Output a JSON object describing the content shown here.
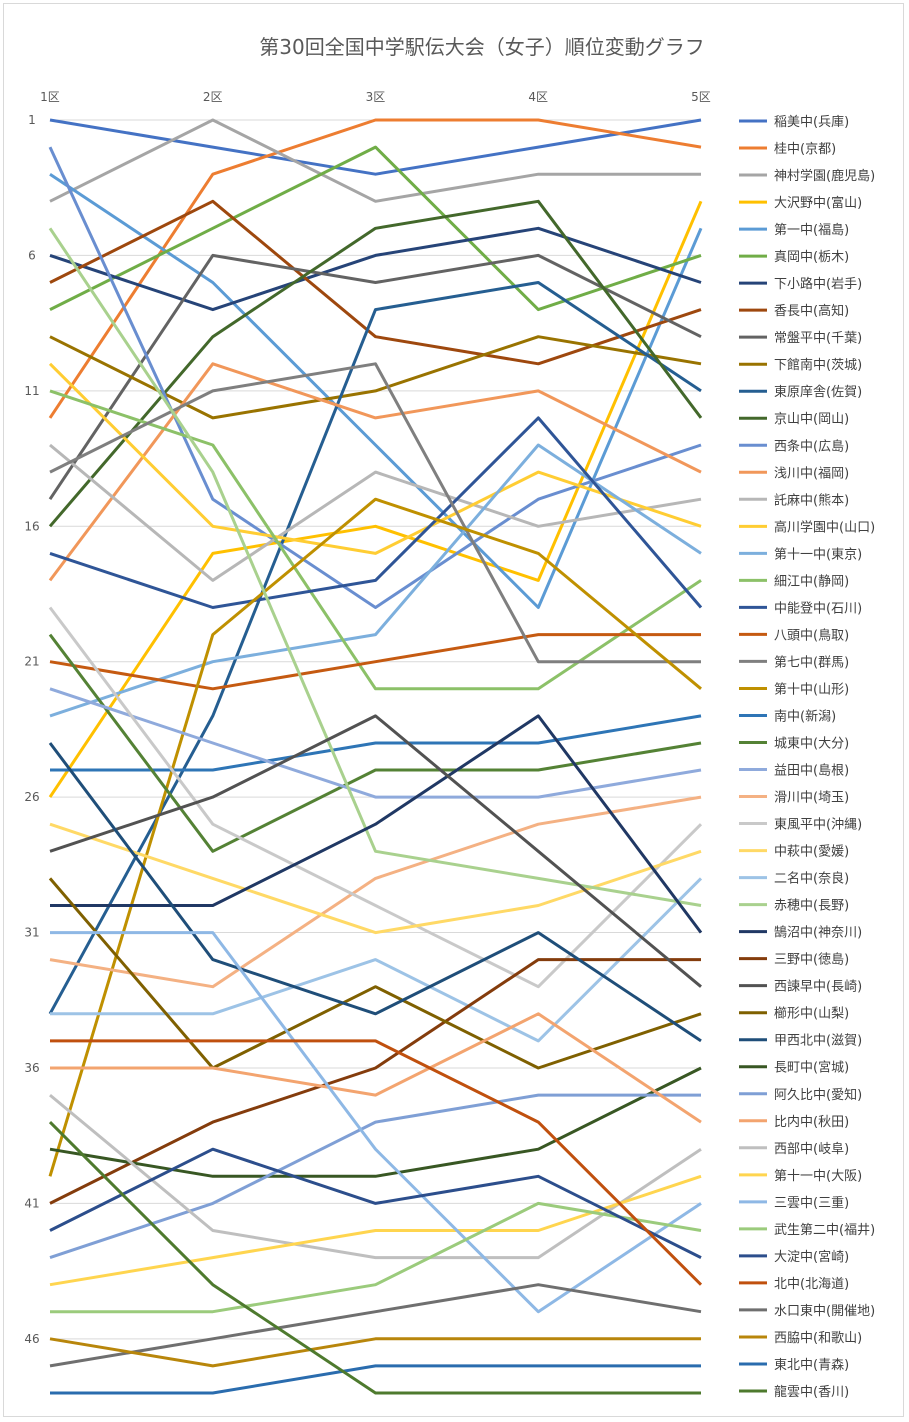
{
  "chart_data": {
    "type": "line",
    "title": "第30回全国中学駅伝大会（女子）順位変動グラフ",
    "categories": [
      "1区",
      "2区",
      "3区",
      "4区",
      "5区"
    ],
    "y_ticks": [
      "1",
      "6",
      "11",
      "16",
      "21",
      "26",
      "31",
      "36",
      "41",
      "46"
    ],
    "ylim": [
      1,
      48
    ],
    "y_inverted": true,
    "grid": true,
    "legend_position": "right",
    "series": [
      {
        "name": "稲美中(兵庫)",
        "color": "#4472C4",
        "values": [
          1,
          2,
          3,
          2,
          1
        ]
      },
      {
        "name": "桂中(京都)",
        "color": "#ED7D31",
        "values": [
          12,
          3,
          1,
          1,
          2
        ]
      },
      {
        "name": "神村学園(鹿児島)",
        "color": "#A5A5A5",
        "values": [
          4,
          1,
          4,
          3,
          3
        ]
      },
      {
        "name": "大沢野中(富山)",
        "color": "#FFC000",
        "values": [
          26,
          17,
          16,
          18,
          4
        ]
      },
      {
        "name": "第一中(福島)",
        "color": "#5B9BD5",
        "values": [
          3,
          7,
          13,
          19,
          5
        ]
      },
      {
        "name": "真岡中(栃木)",
        "color": "#70AD47",
        "values": [
          8,
          5,
          2,
          8,
          6
        ]
      },
      {
        "name": "下小路中(岩手)",
        "color": "#264478",
        "values": [
          6,
          8,
          6,
          5,
          7
        ]
      },
      {
        "name": "香長中(高知)",
        "color": "#9E480E",
        "values": [
          7,
          4,
          9,
          10,
          8
        ]
      },
      {
        "name": "常盤平中(千葉)",
        "color": "#636363",
        "values": [
          15,
          6,
          7,
          6,
          9
        ]
      },
      {
        "name": "下館南中(茨城)",
        "color": "#997300",
        "values": [
          9,
          12,
          11,
          9,
          10
        ]
      },
      {
        "name": "東原庠舎(佐賀)",
        "color": "#255E91",
        "values": [
          34,
          23,
          8,
          7,
          11
        ]
      },
      {
        "name": "京山中(岡山)",
        "color": "#43682B",
        "values": [
          16,
          9,
          5,
          4,
          12
        ]
      },
      {
        "name": "西条中(広島)",
        "color": "#698ED0",
        "values": [
          2,
          15,
          19,
          15,
          13
        ]
      },
      {
        "name": "浅川中(福岡)",
        "color": "#F1975A",
        "values": [
          18,
          10,
          12,
          11,
          14
        ]
      },
      {
        "name": "託麻中(熊本)",
        "color": "#B7B7B7",
        "values": [
          13,
          18,
          14,
          16,
          15
        ]
      },
      {
        "name": "高川学園中(山口)",
        "color": "#FFCD33",
        "values": [
          10,
          16,
          17,
          14,
          16
        ]
      },
      {
        "name": "第十一中(東京)",
        "color": "#7CAFDD",
        "values": [
          23,
          21,
          20,
          13,
          17
        ]
      },
      {
        "name": "細江中(静岡)",
        "color": "#8CC168",
        "values": [
          11,
          13,
          22,
          22,
          18
        ]
      },
      {
        "name": "中能登中(石川)",
        "color": "#2F5597",
        "values": [
          17,
          19,
          18,
          12,
          19
        ]
      },
      {
        "name": "八頭中(鳥取)",
        "color": "#C55A11",
        "values": [
          21,
          22,
          21,
          20,
          20
        ]
      },
      {
        "name": "第七中(群馬)",
        "color": "#7F7F7F",
        "values": [
          14,
          11,
          10,
          21,
          21
        ]
      },
      {
        "name": "第十中(山形)",
        "color": "#BF9000",
        "values": [
          40,
          20,
          15,
          17,
          22
        ]
      },
      {
        "name": "南中(新潟)",
        "color": "#2E75B6",
        "values": [
          25,
          25,
          24,
          24,
          23
        ]
      },
      {
        "name": "城東中(大分)",
        "color": "#548235",
        "values": [
          20,
          28,
          25,
          25,
          24
        ]
      },
      {
        "name": "益田中(島根)",
        "color": "#8FAADC",
        "values": [
          22,
          24,
          26,
          26,
          25
        ]
      },
      {
        "name": "滑川中(埼玉)",
        "color": "#F4B183",
        "values": [
          32,
          33,
          29,
          27,
          26
        ]
      },
      {
        "name": "東風平中(沖縄)",
        "color": "#C9C9C9",
        "values": [
          19,
          27,
          30,
          33,
          27
        ]
      },
      {
        "name": "中萩中(愛媛)",
        "color": "#FFD966",
        "values": [
          27,
          29,
          31,
          30,
          28
        ]
      },
      {
        "name": "二名中(奈良)",
        "color": "#9DC3E6",
        "values": [
          34,
          34,
          32,
          35,
          29
        ]
      },
      {
        "name": "赤穂中(長野)",
        "color": "#A9D18E",
        "values": [
          5,
          14,
          28,
          29,
          30
        ]
      },
      {
        "name": "鵠沼中(神奈川)",
        "color": "#203864",
        "values": [
          30,
          30,
          27,
          23,
          31
        ]
      },
      {
        "name": "三野中(徳島)",
        "color": "#843C0C",
        "values": [
          41,
          38,
          36,
          32,
          32
        ]
      },
      {
        "name": "西諫早中(長崎)",
        "color": "#525252",
        "values": [
          28,
          26,
          23,
          28,
          33
        ]
      },
      {
        "name": "櫛形中(山梨)",
        "color": "#7F6000",
        "values": [
          29,
          36,
          33,
          36,
          34
        ]
      },
      {
        "name": "甲西北中(滋賀)",
        "color": "#1F4E79",
        "values": [
          24,
          32,
          34,
          31,
          35
        ]
      },
      {
        "name": "長町中(宮城)",
        "color": "#385723",
        "values": [
          39,
          40,
          40,
          39,
          36
        ]
      },
      {
        "name": "阿久比中(愛知)",
        "color": "#7F9FD5",
        "values": [
          43,
          41,
          38,
          37,
          37
        ]
      },
      {
        "name": "比内中(秋田)",
        "color": "#F3A46F",
        "values": [
          36,
          36,
          37,
          34,
          38
        ]
      },
      {
        "name": "西部中(岐阜)",
        "color": "#BFBFBF",
        "values": [
          37,
          42,
          43,
          43,
          39
        ]
      },
      {
        "name": "第十一中(大阪)",
        "color": "#FFD54F",
        "values": [
          44,
          43,
          42,
          42,
          40
        ]
      },
      {
        "name": "三雲中(三重)",
        "color": "#8EB8E5",
        "values": [
          31,
          31,
          39,
          45,
          41
        ]
      },
      {
        "name": "武生第二中(福井)",
        "color": "#9BCB7C",
        "values": [
          45,
          45,
          44,
          41,
          42
        ]
      },
      {
        "name": "大淀中(宮崎)",
        "color": "#2C4E8C",
        "values": [
          42,
          39,
          41,
          40,
          43
        ]
      },
      {
        "name": "北中(北海道)",
        "color": "#C0500E",
        "values": [
          35,
          35,
          35,
          38,
          44
        ]
      },
      {
        "name": "水口東中(開催地)",
        "color": "#6F6F6F",
        "values": [
          47,
          46,
          45,
          44,
          45
        ]
      },
      {
        "name": "西脇中(和歌山)",
        "color": "#B8860B",
        "values": [
          46,
          47,
          46,
          46,
          46
        ]
      },
      {
        "name": "東北中(青森)",
        "color": "#2A6CAE",
        "values": [
          48,
          48,
          47,
          47,
          47
        ]
      },
      {
        "name": "龍雲中(香川)",
        "color": "#4E7A2E",
        "values": [
          38,
          44,
          48,
          48,
          48
        ]
      }
    ]
  }
}
